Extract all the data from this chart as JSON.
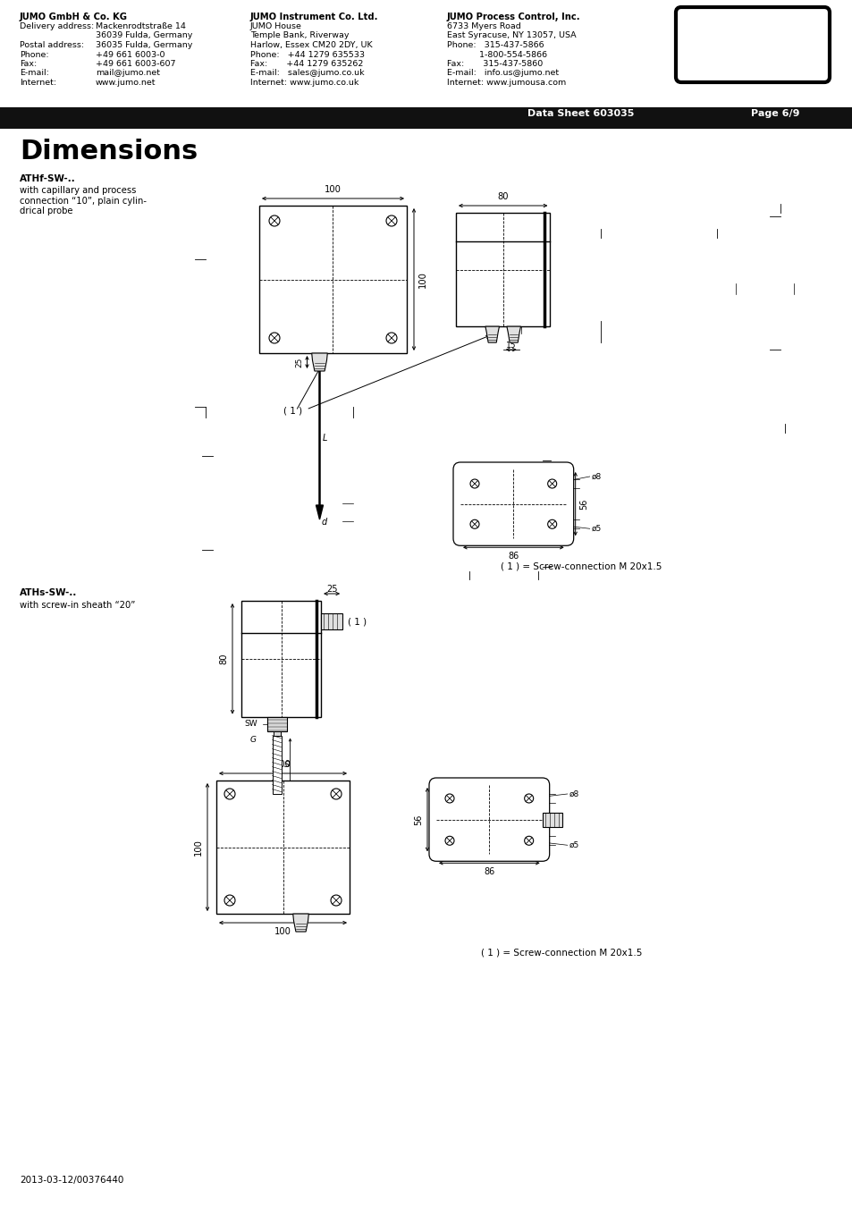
{
  "bg_color": "#ffffff",
  "title": "Dimensions",
  "data_sheet": "Data Sheet 603035",
  "page": "Page 6/9",
  "footer_text": "2013-03-12/00376440",
  "company1_bold": "JUMO GmbH & Co. KG",
  "company1_lines": [
    [
      "Delivery address:",
      "Mackenrodtstraße 14"
    ],
    [
      "",
      "36039 Fulda, Germany"
    ],
    [
      "Postal address:",
      "36035 Fulda, Germany"
    ],
    [
      "Phone:",
      "+49 661 6003-0"
    ],
    [
      "Fax:",
      "+49 661 6003-607"
    ],
    [
      "E-mail:",
      "mail@jumo.net"
    ],
    [
      "Internet:",
      "www.jumo.net"
    ]
  ],
  "company2_bold": "JUMO Instrument Co. Ltd.",
  "company2_lines": [
    "JUMO House",
    "Temple Bank, Riverway",
    "Harlow, Essex CM20 2DY, UK",
    "Phone:   +44 1279 635533",
    "Fax:       +44 1279 635262",
    "E-mail:   sales@jumo.co.uk",
    "Internet: www.jumo.co.uk"
  ],
  "company3_bold": "JUMO Process Control, Inc.",
  "company3_lines": [
    "6733 Myers Road",
    "East Syracuse, NY 13057, USA",
    "Phone:   315-437-5866",
    "            1-800-554-5866",
    "Fax:       315-437-5860",
    "E-mail:   info.us@jumo.net",
    "Internet: www.jumousa.com"
  ],
  "section1_title": "ATHf-SW-..",
  "section1_desc": "with capillary and process\nconnection “10”, plain cylin-\ndrical probe",
  "section2_title": "ATHs-SW-..",
  "section2_desc": "with screw-in sheath “20”",
  "note1": "( 1 ) = Screw-connection M 20x1.5",
  "note2": "( 1 ) = Screw-connection M 20x1.5"
}
